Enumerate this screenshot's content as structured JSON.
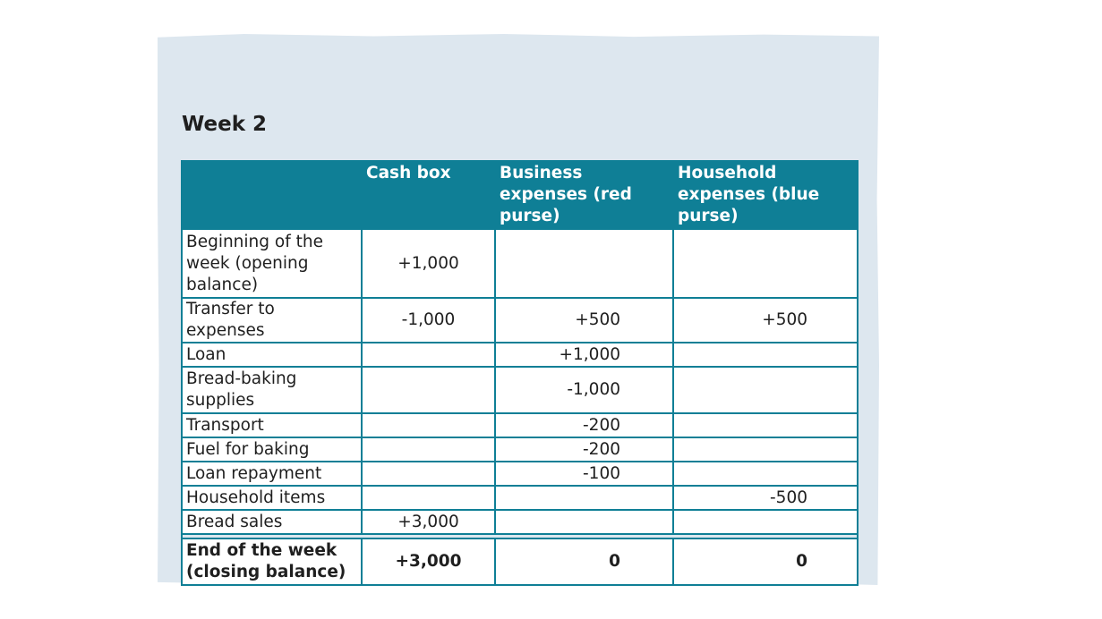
{
  "title": "Week 2",
  "columns": [
    "",
    "Cash box",
    "Business expenses (red purse)",
    "Household expenses (blue purse)"
  ],
  "rows": [
    {
      "label": "Beginning of the week (opening balance)",
      "cash": "+1,000",
      "business": "",
      "household": ""
    },
    {
      "label": "Transfer to expenses",
      "cash": "-1,000",
      "business": "+500",
      "household": "+500"
    },
    {
      "label": "Loan",
      "cash": "",
      "business": "+1,000",
      "household": ""
    },
    {
      "label": "Bread-baking supplies",
      "cash": "",
      "business": "-1,000",
      "household": ""
    },
    {
      "label": "Transport",
      "cash": "",
      "business": "-200",
      "household": ""
    },
    {
      "label": "Fuel for baking",
      "cash": "",
      "business": "-200",
      "household": ""
    },
    {
      "label": "Loan repayment",
      "cash": "",
      "business": "-100",
      "household": ""
    },
    {
      "label": "Household items",
      "cash": "",
      "business": "",
      "household": "-500"
    },
    {
      "label": "Bread sales",
      "cash": "+3,000",
      "business": "",
      "household": ""
    }
  ],
  "total": {
    "label": "End of the week (closing balance)",
    "cash": "+3,000",
    "business": "0",
    "household": "0"
  },
  "colors": {
    "header": "#0f7f96",
    "card": "#dde7ef"
  }
}
